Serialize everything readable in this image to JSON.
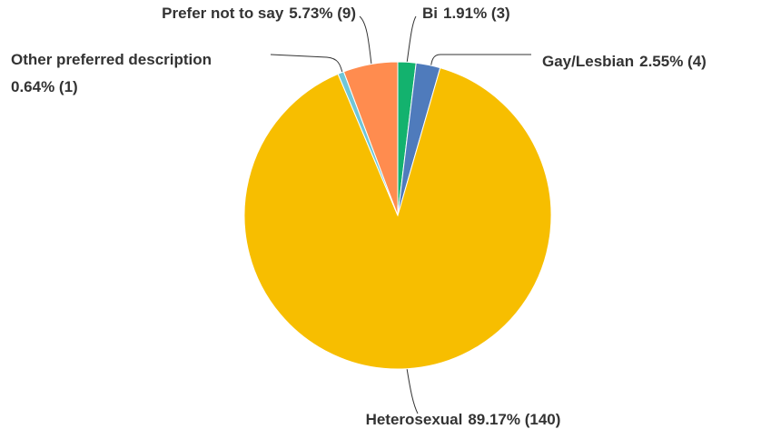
{
  "chart_data": {
    "type": "pie",
    "categories": [
      "Bi",
      "Gay/Lesbian",
      "Heterosexual",
      "Other preferred description",
      "Prefer not to say"
    ],
    "values": [
      1.91,
      2.55,
      89.17,
      0.64,
      5.73
    ],
    "value_labels": [
      "1.91% (3)",
      "2.55% (4)",
      "89.17% (140)",
      "0.64% (1)",
      "5.73% (9)"
    ],
    "colors": [
      "#13b26e",
      "#4f7bbc",
      "#f7be00",
      "#6fc6d8",
      "#ff8c4f"
    ]
  }
}
